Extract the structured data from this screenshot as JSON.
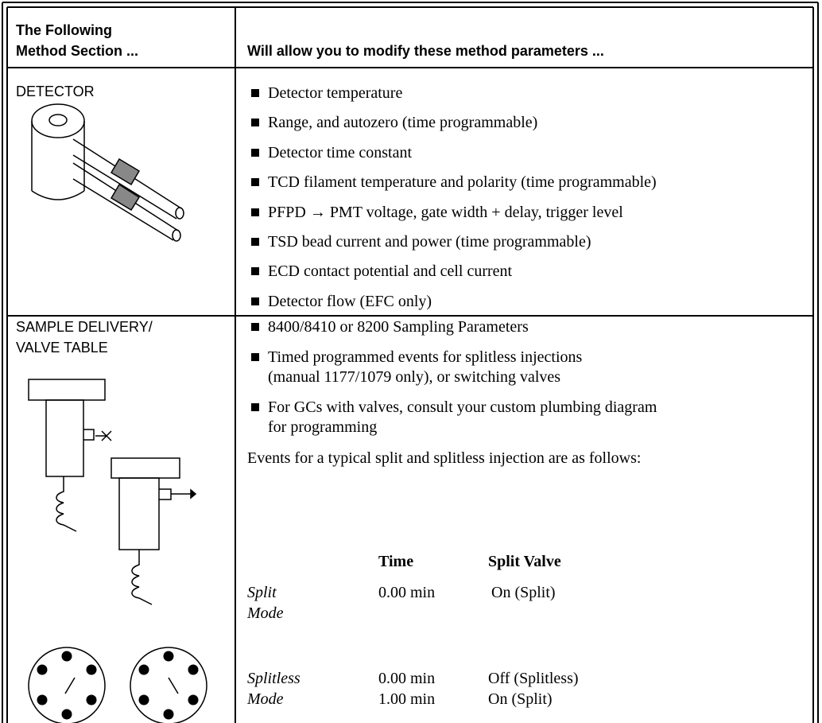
{
  "header": {
    "section": [
      "The Following",
      "Method Section ..."
    ],
    "parameters": "Will allow you to modify these method parameters ..."
  },
  "detector": {
    "section": [
      "DETECTOR"
    ],
    "items": [
      "Detector temperature",
      "Range, and autozero (time programmable)",
      "Detector time constant",
      "TCD filament temperature and polarity (time programmable)",
      "PFPD → PMT voltage, gate width + delay, trigger level",
      "TSD bead current and power (time programmable)",
      "ECD contact potential and cell current",
      "Detector flow (EFC only)"
    ]
  },
  "sample_delivery": {
    "section": [
      "SAMPLE DELIVERY/",
      "VALVE TABLE"
    ],
    "items": [
      [
        "8400/8410 or 8200 Sampling Parameters"
      ],
      [
        "Timed programmed events for splitless injections",
        "(manual 1177/1079 only), or switching valves"
      ],
      [
        "For GCs with valves, consult your custom plumbing diagram",
        "for programming"
      ]
    ],
    "note": "Events for a typical split and splitless injection are as follows:",
    "events": {
      "headers": [
        "Time",
        "Split Valve"
      ],
      "rows": [
        {
          "mode": [
            "Split",
            "Mode"
          ],
          "times": [
            "0.00 min"
          ],
          "valves": [
            "On (Split)"
          ]
        },
        {
          "mode": [
            "Splitless",
            "Mode"
          ],
          "times": [
            "0.00 min",
            "1.00 min"
          ],
          "valves": [
            "Off (Splitless)",
            "On (Split)"
          ]
        }
      ]
    }
  }
}
